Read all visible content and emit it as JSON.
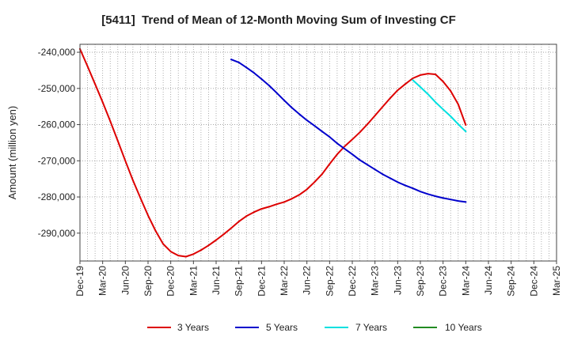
{
  "chart_data": {
    "type": "line",
    "title": "[5411]  Trend of Mean of 12-Month Moving Sum of Investing CF",
    "xlabel": "",
    "ylabel": "Amount (million yen)",
    "xlim_months": [
      0,
      63
    ],
    "x_tick_step_months": 3,
    "x_tick_labels": [
      "Dec-19",
      "Mar-20",
      "Jun-20",
      "Sep-20",
      "Dec-20",
      "Mar-21",
      "Jun-21",
      "Sep-21",
      "Dec-21",
      "Mar-22",
      "Jun-22",
      "Sep-22",
      "Dec-22",
      "Mar-23",
      "Jun-23",
      "Sep-23",
      "Dec-23",
      "Mar-24",
      "Jun-24",
      "Sep-24",
      "Dec-24",
      "Mar-25"
    ],
    "ylim": [
      -297700,
      -237800
    ],
    "y_ticks": [
      -240000,
      -250000,
      -260000,
      -270000,
      -280000,
      -290000
    ],
    "y_tick_labels": [
      "-240,000",
      "-250,000",
      "-260,000",
      "-270,000",
      "-280,000",
      "-290,000"
    ],
    "grid": true,
    "legend_position": "bottom",
    "series": [
      {
        "name": "3 Years",
        "color": "#dd0000",
        "x_start_month": 0,
        "values": [
          -239100,
          -243900,
          -248800,
          -253800,
          -259000,
          -264500,
          -270000,
          -275400,
          -280300,
          -285100,
          -289400,
          -293000,
          -295100,
          -296200,
          -296500,
          -295800,
          -294700,
          -293400,
          -291900,
          -290300,
          -288600,
          -286800,
          -285300,
          -284200,
          -283300,
          -282700,
          -282000,
          -281400,
          -280500,
          -279400,
          -277900,
          -275900,
          -273700,
          -270900,
          -268200,
          -266000,
          -264100,
          -262100,
          -259900,
          -257500,
          -255100,
          -252700,
          -250500,
          -248800,
          -247200,
          -246300,
          -245900,
          -246100,
          -248100,
          -250700,
          -254400,
          -260100
        ]
      },
      {
        "name": "5 Years",
        "color": "#0000cc",
        "x_start_month": 20,
        "values": [
          -242000,
          -242800,
          -244200,
          -245700,
          -247400,
          -249200,
          -251200,
          -253300,
          -255300,
          -257100,
          -258800,
          -260300,
          -261900,
          -263400,
          -265200,
          -266700,
          -268200,
          -269800,
          -271100,
          -272400,
          -273700,
          -274800,
          -275900,
          -276800,
          -277600,
          -278500,
          -279200,
          -279800,
          -280300,
          -280700,
          -281100,
          -281400
        ]
      },
      {
        "name": "7 Years",
        "color": "#00e0e0",
        "x_start_month": 44,
        "values": [
          -247700,
          -249600,
          -251600,
          -253800,
          -255800,
          -257700,
          -259900,
          -261900
        ]
      },
      {
        "name": "10 Years",
        "color": "#228b22",
        "x_start_month": null,
        "values": []
      }
    ]
  }
}
